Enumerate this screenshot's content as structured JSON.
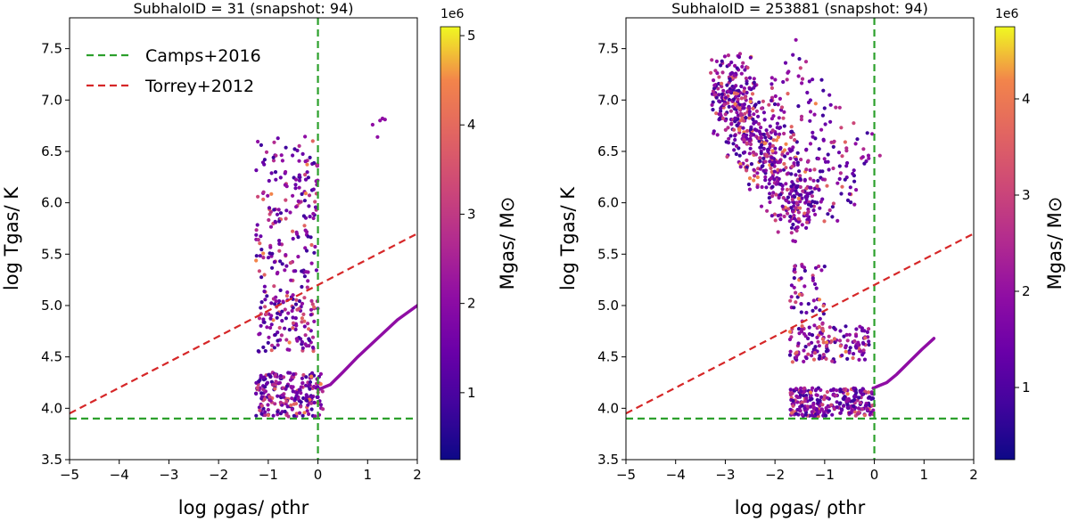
{
  "chart_data": [
    {
      "type": "scatter",
      "title": "SubhaloID = 31 (snapshot: 94)",
      "xlabel": "log ρgas/ ρthr",
      "ylabel": "log Tgas/ K",
      "xlim": [
        -5,
        2
      ],
      "ylim": [
        3.5,
        7.8
      ],
      "xticks": [
        -5,
        -4,
        -3,
        -2,
        -1,
        0,
        1,
        2
      ],
      "yticks": [
        3.5,
        4.0,
        4.5,
        5.0,
        5.5,
        6.0,
        6.5,
        7.0,
        7.5
      ],
      "xtick_labels": [
        "−5",
        "−4",
        "−3",
        "−2",
        "−1",
        "0",
        "1",
        "2"
      ],
      "ytick_labels": [
        "3.5",
        "4.0",
        "4.5",
        "5.0",
        "5.5",
        "6.0",
        "6.5",
        "7.0",
        "7.5"
      ],
      "legend": {
        "placement": "top-left",
        "entries": [
          "Camps+2016",
          "Torrey+2012"
        ]
      },
      "lines": [
        {
          "name": "Camps+2016",
          "style": "dashed",
          "color": "#2ca02c",
          "kind": "hline",
          "y": 3.9
        },
        {
          "name": "Camps+2016",
          "style": "dashed",
          "color": "#2ca02c",
          "kind": "vline",
          "x": 0
        },
        {
          "name": "Torrey+2012",
          "style": "dashed",
          "color": "#d62728",
          "kind": "line",
          "x": [
            -5,
            2
          ],
          "y": [
            3.95,
            5.7
          ]
        }
      ],
      "eos_track": {
        "x": [
          0,
          0.1,
          0.25,
          0.5,
          0.8,
          1.2,
          1.6,
          2.0
        ],
        "y": [
          4.18,
          4.2,
          4.23,
          4.35,
          4.5,
          4.68,
          4.86,
          5.0
        ]
      },
      "clouds": [
        {
          "n": 170,
          "x": [
            -1.25,
            0.0
          ],
          "y": [
            5.3,
            6.65
          ],
          "kind": "box"
        },
        {
          "n": 120,
          "x": [
            -1.2,
            0.0
          ],
          "y": [
            4.55,
            5.1
          ],
          "kind": "box"
        },
        {
          "n": 230,
          "x": [
            -1.25,
            0.1
          ],
          "y": [
            3.92,
            4.35
          ],
          "kind": "box"
        },
        {
          "n": 25,
          "x": [
            -1.2,
            -0.2
          ],
          "y": [
            5.05,
            5.35
          ],
          "kind": "box"
        }
      ],
      "outliers": {
        "x": [
          1.1,
          1.25,
          1.3,
          1.35,
          1.2
        ],
        "y": [
          6.76,
          6.8,
          6.82,
          6.81,
          6.64
        ]
      },
      "colorbar": {
        "label": "Mgas/ M⊙",
        "scale_label": "1e6",
        "min": 0.25,
        "max": 5.1,
        "ticks": [
          1,
          2,
          3,
          4,
          5
        ],
        "tick_labels": [
          "1",
          "2",
          "3",
          "4",
          "5"
        ]
      }
    },
    {
      "type": "scatter",
      "title": "SubhaloID = 253881 (snapshot: 94)",
      "xlabel": "log ρgas/ ρthr",
      "ylabel": "log Tgas/ K",
      "xlim": [
        -5,
        2
      ],
      "ylim": [
        3.5,
        7.8
      ],
      "xticks": [
        -5,
        -4,
        -3,
        -2,
        -1,
        0,
        1,
        2
      ],
      "yticks": [
        3.5,
        4.0,
        4.5,
        5.0,
        5.5,
        6.0,
        6.5,
        7.0,
        7.5
      ],
      "xtick_labels": [
        "−5",
        "−4",
        "−3",
        "−2",
        "−1",
        "0",
        "1",
        "2"
      ],
      "ytick_labels": [
        "3.5",
        "4.0",
        "4.5",
        "5.0",
        "5.5",
        "6.0",
        "6.5",
        "7.0",
        "7.5"
      ],
      "lines": [
        {
          "name": "Camps+2016",
          "style": "dashed",
          "color": "#2ca02c",
          "kind": "hline",
          "y": 3.9
        },
        {
          "name": "Camps+2016",
          "style": "dashed",
          "color": "#2ca02c",
          "kind": "vline",
          "x": 0
        },
        {
          "name": "Torrey+2012",
          "style": "dashed",
          "color": "#d62728",
          "kind": "line",
          "x": [
            -5,
            2
          ],
          "y": [
            3.95,
            5.7
          ]
        }
      ],
      "eos_track": {
        "x": [
          0,
          0.1,
          0.25,
          0.45,
          0.7,
          0.95,
          1.2
        ],
        "y": [
          4.2,
          4.22,
          4.25,
          4.33,
          4.45,
          4.57,
          4.68
        ]
      },
      "clouds": [
        {
          "n": 520,
          "kind": "band",
          "x0": -3.1,
          "y0": 7.1,
          "x1": -1.3,
          "y1": 5.9,
          "w": 0.55
        },
        {
          "n": 90,
          "kind": "box",
          "x": [
            -3.3,
            -2.4
          ],
          "y": [
            6.8,
            7.45
          ]
        },
        {
          "n": 150,
          "kind": "band",
          "x0": -2.0,
          "y0": 7.2,
          "x1": -0.4,
          "y1": 6.1,
          "w": 1.0
        },
        {
          "n": 110,
          "kind": "box",
          "x": [
            -1.7,
            -1.0
          ],
          "y": [
            4.45,
            5.4
          ]
        },
        {
          "n": 90,
          "kind": "box",
          "x": [
            -1.2,
            -0.1
          ],
          "y": [
            4.45,
            4.8
          ]
        },
        {
          "n": 280,
          "kind": "box",
          "x": [
            -1.7,
            0.0
          ],
          "y": [
            3.92,
            4.2
          ]
        }
      ],
      "colorbar": {
        "label": "Mgas/ M⊙",
        "scale_label": "1e6",
        "min": 0.25,
        "max": 4.75,
        "ticks": [
          1,
          2,
          3,
          4
        ],
        "tick_labels": [
          "1",
          "2",
          "3",
          "4"
        ]
      }
    }
  ]
}
